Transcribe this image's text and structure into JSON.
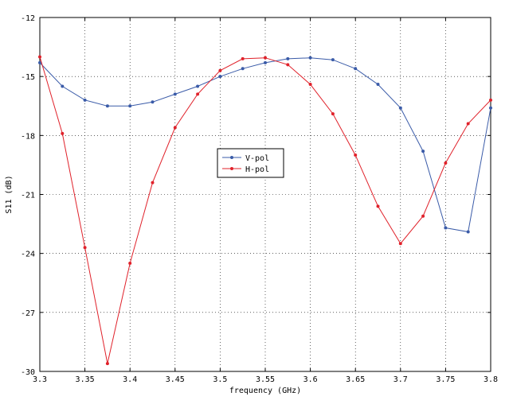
{
  "chart_data": {
    "type": "line",
    "title": "",
    "xlabel": "frequency (GHz)",
    "ylabel": "S11 (dB)",
    "xlim": [
      3.3,
      3.8
    ],
    "ylim": [
      -30,
      -12
    ],
    "grid": true,
    "legend_position": "center",
    "x_ticks": [
      3.3,
      3.35,
      3.4,
      3.45,
      3.5,
      3.55,
      3.6,
      3.65,
      3.7,
      3.75,
      3.8
    ],
    "x_tick_labels": [
      "3.3",
      "3.35",
      "3.4",
      "3.45",
      "3.5",
      "3.55",
      "3.6",
      "3.65",
      "3.7",
      "3.75",
      "3.8"
    ],
    "y_ticks": [
      -30,
      -27,
      -24,
      -21,
      -18,
      -15,
      -12
    ],
    "y_tick_labels": [
      "-30",
      "-27",
      "-24",
      "-21",
      "-18",
      "-15",
      "-12"
    ],
    "series": [
      {
        "name": "V-pol",
        "color": "#3a5ba8",
        "marker": "dot",
        "x": [
          3.3,
          3.325,
          3.35,
          3.375,
          3.4,
          3.425,
          3.45,
          3.475,
          3.5,
          3.525,
          3.55,
          3.575,
          3.6,
          3.625,
          3.65,
          3.675,
          3.7,
          3.725,
          3.75,
          3.775,
          3.8
        ],
        "y": [
          -14.3,
          -15.5,
          -16.2,
          -16.5,
          -16.5,
          -16.3,
          -15.9,
          -15.5,
          -15.0,
          -14.6,
          -14.3,
          -14.1,
          -14.05,
          -14.15,
          -14.6,
          -15.4,
          -16.6,
          -18.8,
          -22.7,
          -22.9,
          -16.6
        ]
      },
      {
        "name": "H-pol",
        "color": "#e0212a",
        "marker": "dot",
        "x": [
          3.3,
          3.325,
          3.35,
          3.375,
          3.4,
          3.425,
          3.45,
          3.475,
          3.5,
          3.525,
          3.55,
          3.575,
          3.6,
          3.625,
          3.65,
          3.675,
          3.7,
          3.725,
          3.75,
          3.775,
          3.8
        ],
        "y": [
          -14.0,
          -17.9,
          -23.7,
          -29.6,
          -24.5,
          -20.4,
          -17.6,
          -15.9,
          -14.7,
          -14.1,
          -14.05,
          -14.4,
          -15.4,
          -16.9,
          -19.0,
          -21.6,
          -23.5,
          -22.1,
          -19.4,
          -17.4,
          -16.2
        ]
      }
    ]
  }
}
